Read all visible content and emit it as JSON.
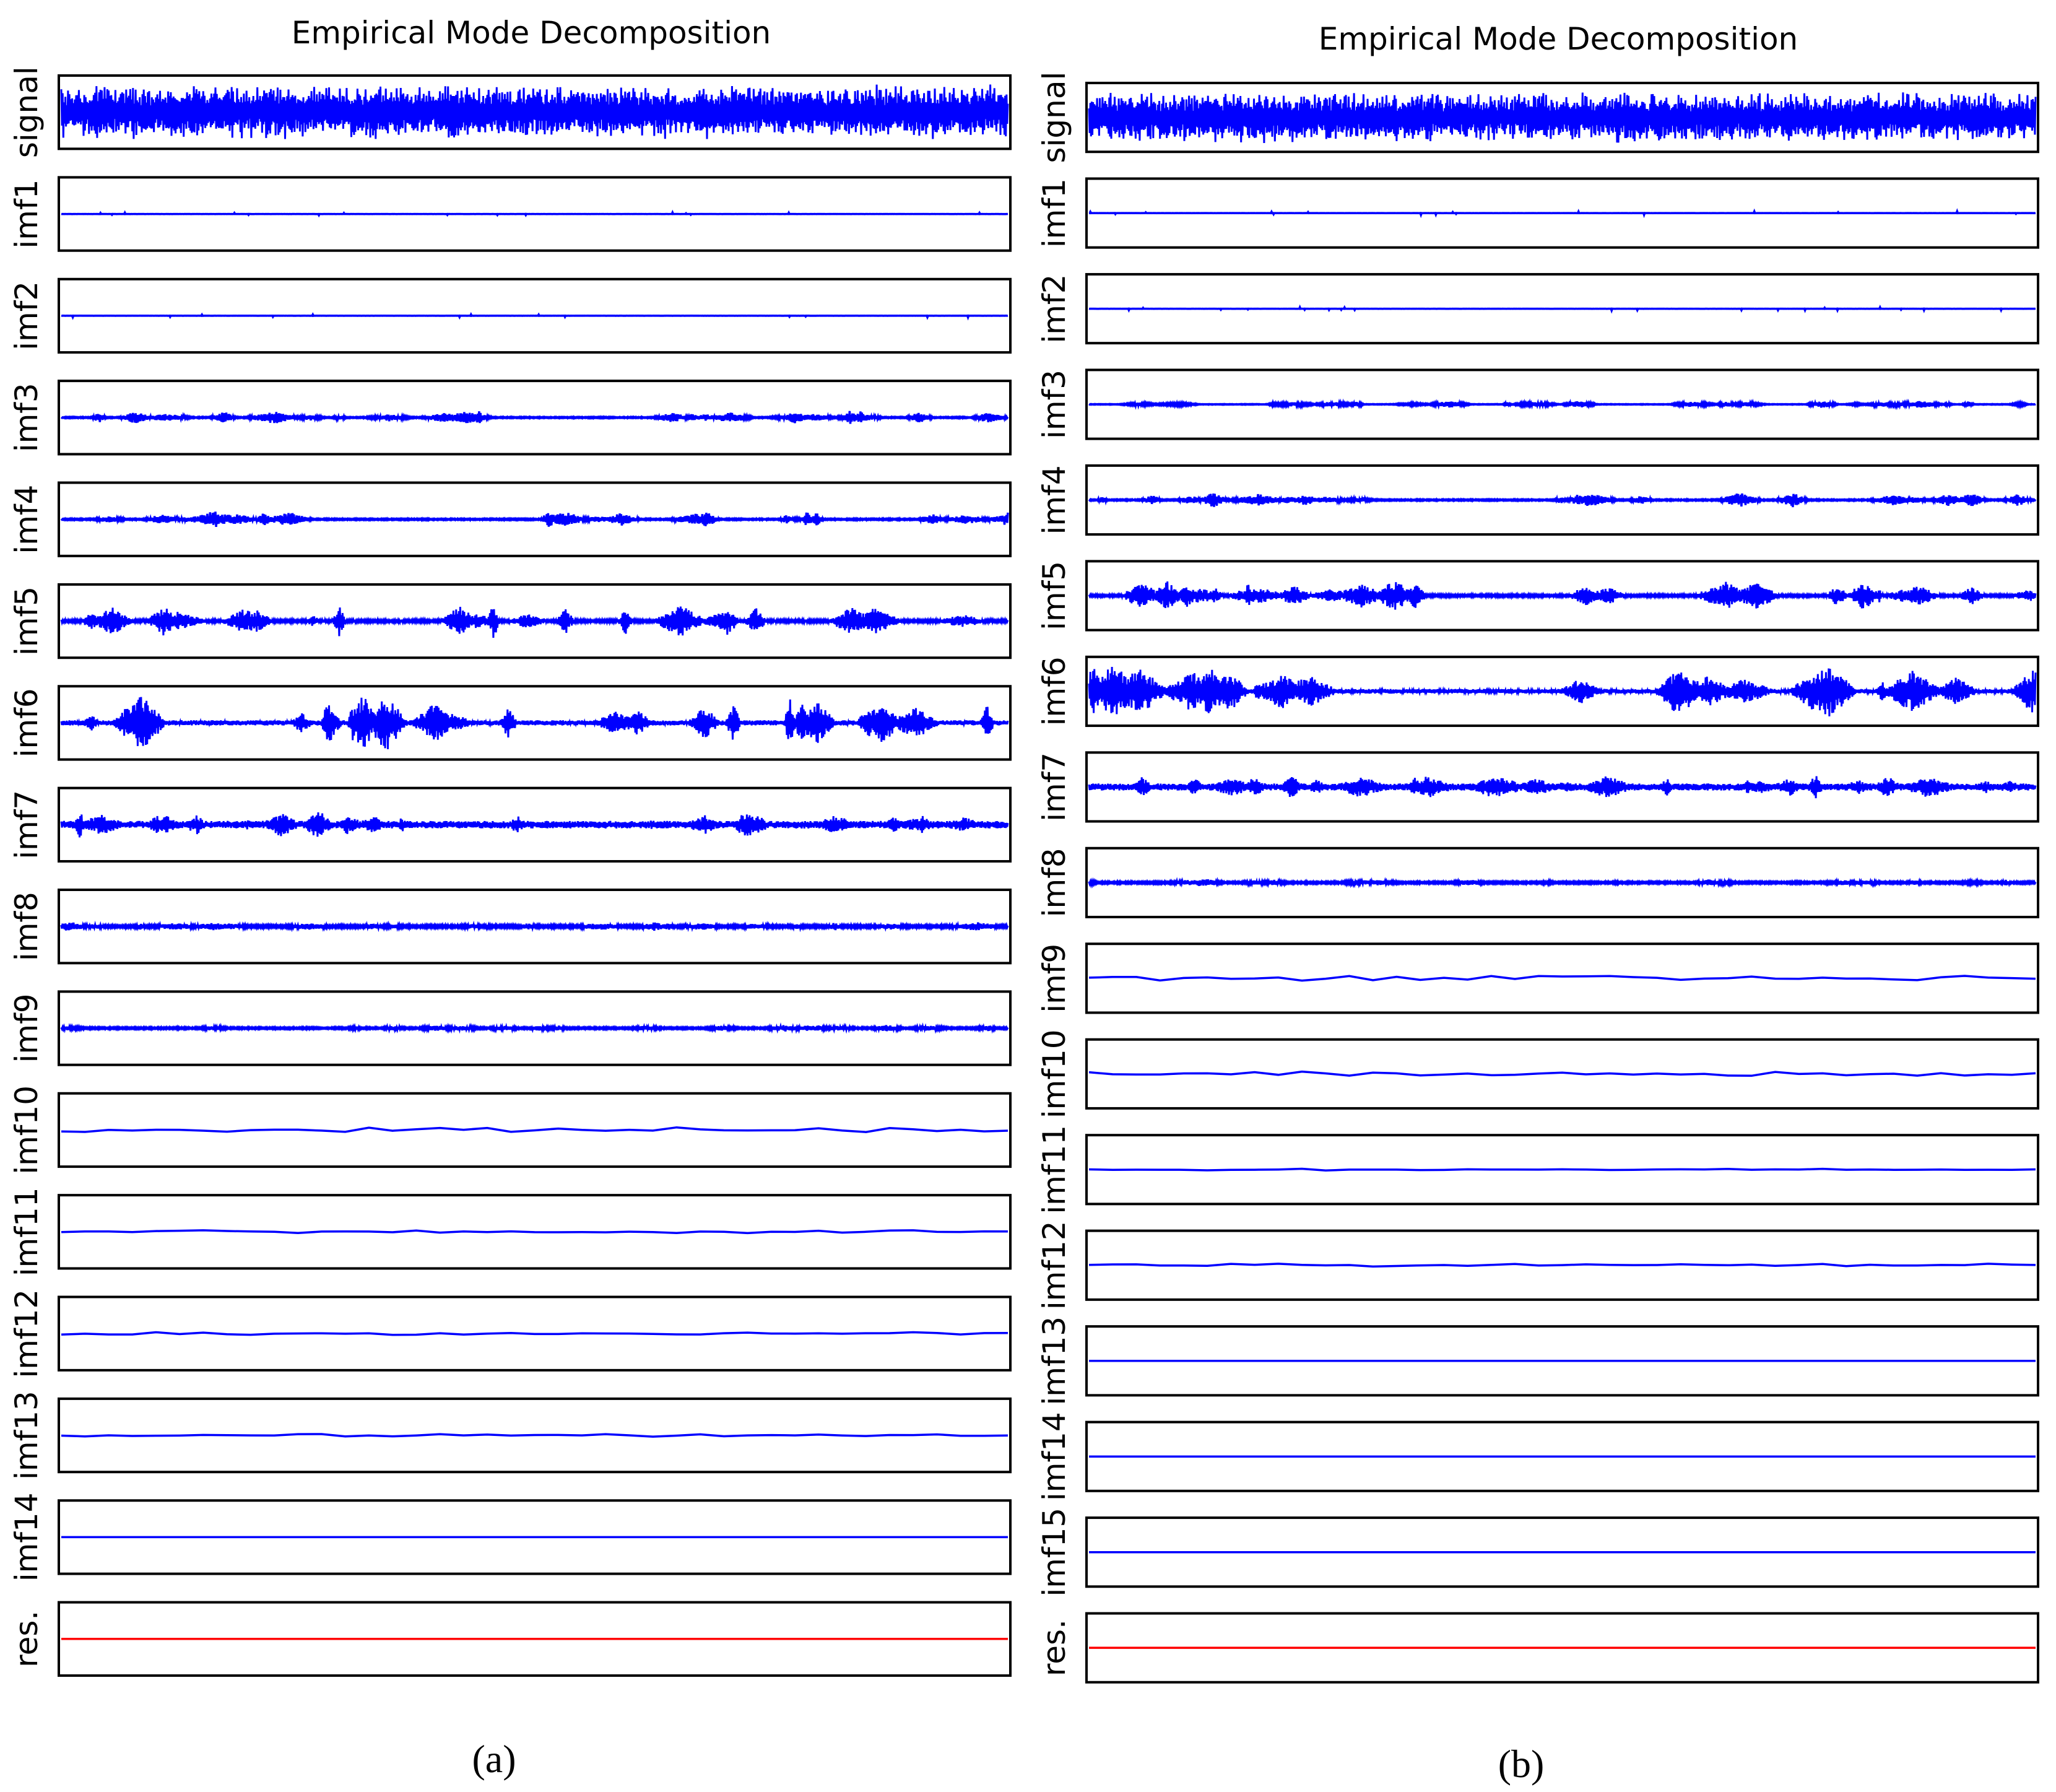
{
  "figure": {
    "colors": {
      "imf": "#0000ff",
      "residual": "#ff0000",
      "frame": "#000000"
    }
  },
  "chart_data": [
    {
      "type": "line",
      "title": "Empirical Mode Decomposition",
      "caption": "(a)",
      "panels": [
        {
          "label": "signal",
          "amplitude": 0.85,
          "style": "noise"
        },
        {
          "label": "imf1",
          "amplitude": 0.05,
          "style": "flat-spikes"
        },
        {
          "label": "imf2",
          "amplitude": 0.06,
          "style": "flat-spikes"
        },
        {
          "label": "imf3",
          "amplitude": 0.22,
          "style": "bursts"
        },
        {
          "label": "imf4",
          "amplitude": 0.25,
          "style": "bursts"
        },
        {
          "label": "imf5",
          "amplitude": 0.55,
          "style": "bursts"
        },
        {
          "label": "imf6",
          "amplitude": 0.95,
          "style": "bursts"
        },
        {
          "label": "imf7",
          "amplitude": 0.45,
          "style": "oscillation"
        },
        {
          "label": "imf8",
          "amplitude": 0.15,
          "style": "oscillation"
        },
        {
          "label": "imf9",
          "amplitude": 0.1,
          "style": "oscillation"
        },
        {
          "label": "imf10",
          "amplitude": 0.08,
          "style": "slow"
        },
        {
          "label": "imf11",
          "amplitude": 0.05,
          "style": "slow"
        },
        {
          "label": "imf12",
          "amplitude": 0.05,
          "style": "slow"
        },
        {
          "label": "imf13",
          "amplitude": 0.04,
          "style": "slow"
        },
        {
          "label": "imf14",
          "amplitude": 0.0,
          "style": "flat"
        },
        {
          "label": "res.",
          "amplitude": 0.0,
          "style": "residual"
        }
      ]
    },
    {
      "type": "line",
      "title": "Empirical Mode Decomposition",
      "caption": "(b)",
      "panels": [
        {
          "label": "signal",
          "amplitude": 0.85,
          "style": "noise"
        },
        {
          "label": "imf1",
          "amplitude": 0.06,
          "style": "flat-spikes"
        },
        {
          "label": "imf2",
          "amplitude": 0.06,
          "style": "flat-spikes"
        },
        {
          "label": "imf3",
          "amplitude": 0.12,
          "style": "bursts"
        },
        {
          "label": "imf4",
          "amplitude": 0.25,
          "style": "bursts"
        },
        {
          "label": "imf5",
          "amplitude": 0.5,
          "style": "bursts"
        },
        {
          "label": "imf6",
          "amplitude": 0.9,
          "style": "bursts"
        },
        {
          "label": "imf7",
          "amplitude": 0.45,
          "style": "oscillation"
        },
        {
          "label": "imf8",
          "amplitude": 0.12,
          "style": "oscillation"
        },
        {
          "label": "imf9",
          "amplitude": 0.08,
          "style": "slow"
        },
        {
          "label": "imf10",
          "amplitude": 0.08,
          "style": "slow"
        },
        {
          "label": "imf11",
          "amplitude": 0.03,
          "style": "slow"
        },
        {
          "label": "imf12",
          "amplitude": 0.05,
          "style": "slow"
        },
        {
          "label": "imf13",
          "amplitude": 0.0,
          "style": "flat"
        },
        {
          "label": "imf14",
          "amplitude": 0.0,
          "style": "flat"
        },
        {
          "label": "imf15",
          "amplitude": 0.0,
          "style": "flat"
        },
        {
          "label": "res.",
          "amplitude": 0.0,
          "style": "residual"
        }
      ]
    }
  ]
}
